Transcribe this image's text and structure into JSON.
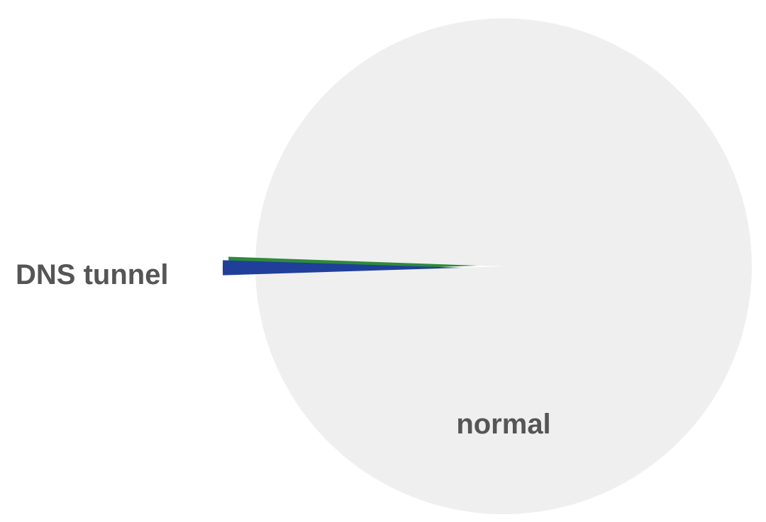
{
  "chart_data": {
    "type": "pie",
    "title": "",
    "slices": [
      {
        "label": "normal",
        "value": 99.0,
        "color": "#efefef"
      },
      {
        "label": "DNS tunnel",
        "value": 1.0,
        "color": "#1f3f9a",
        "edge_color": "#2f8a3a",
        "exploded": true
      }
    ]
  }
}
